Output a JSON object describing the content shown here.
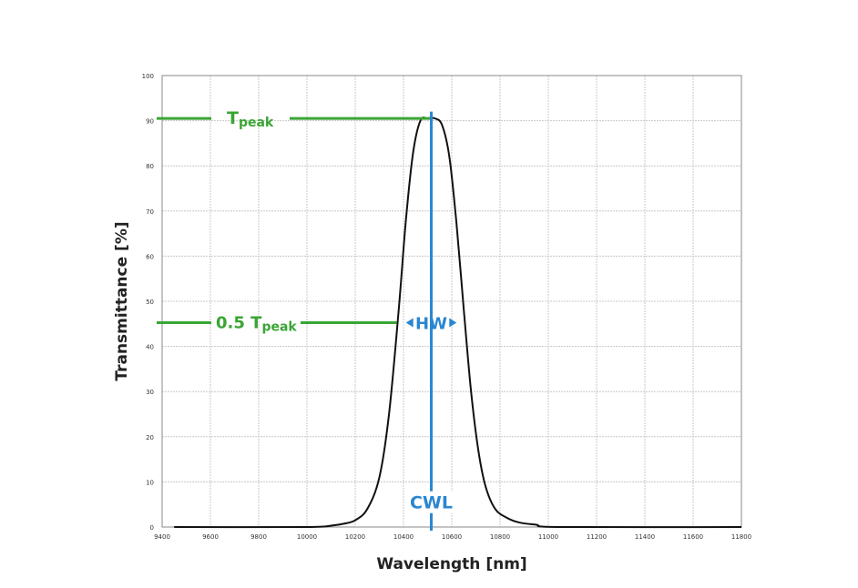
{
  "chart_data": {
    "type": "line",
    "title": "",
    "xlabel": "Wavelength [nm]",
    "ylabel": "Transmittance [%]",
    "xlim": [
      9400,
      11800
    ],
    "ylim": [
      0,
      100
    ],
    "x_ticks": [
      9400,
      9600,
      9800,
      10000,
      10200,
      10400,
      10600,
      10800,
      11000,
      11200,
      11400,
      11600,
      11800
    ],
    "y_ticks": [
      0,
      10,
      20,
      30,
      40,
      50,
      60,
      70,
      80,
      90,
      100
    ],
    "x_tick_labels": [
      "9400",
      "9600",
      "9800",
      "10000",
      "10200",
      "10400",
      "10600",
      "10800",
      "11000",
      "11200",
      "11400",
      "11600",
      "11800"
    ],
    "y_tick_labels": [
      "0",
      "10",
      "20",
      "30",
      "40",
      "50",
      "60",
      "70",
      "80",
      "90",
      "100"
    ],
    "grid": true,
    "colors": {
      "curve": "#111111",
      "tpeak": "#3aa535",
      "cwl": "#2a86d1",
      "grid": "#c8c8c8"
    },
    "series": [
      {
        "points": [
          [
            9450,
            0
          ],
          [
            10000,
            0
          ],
          [
            10100,
            0.3
          ],
          [
            10150,
            0.7
          ],
          [
            10200,
            1.5
          ],
          [
            10250,
            4
          ],
          [
            10300,
            11
          ],
          [
            10340,
            25
          ],
          [
            10380,
            48
          ],
          [
            10410,
            68
          ],
          [
            10440,
            83
          ],
          [
            10470,
            90
          ],
          [
            10500,
            90.5
          ],
          [
            10530,
            90.5
          ],
          [
            10560,
            89
          ],
          [
            10590,
            82
          ],
          [
            10620,
            67
          ],
          [
            10650,
            48
          ],
          [
            10680,
            30
          ],
          [
            10710,
            17
          ],
          [
            10740,
            9
          ],
          [
            10780,
            4
          ],
          [
            10830,
            2
          ],
          [
            10880,
            1
          ],
          [
            10950,
            0.5
          ],
          [
            11050,
            0
          ],
          [
            11800,
            0
          ]
        ]
      }
    ],
    "annotations": {
      "tpeak": {
        "label_main": "T",
        "label_sub": "peak",
        "value": 90.5
      },
      "half": {
        "label_prefix": "0.5 T",
        "label_sub": "peak",
        "value": 45.25
      },
      "hw_label": "HW",
      "hw_range": [
        10395,
        10635
      ],
      "cwl_label": "CWL",
      "cwl_value": 10515
    }
  }
}
